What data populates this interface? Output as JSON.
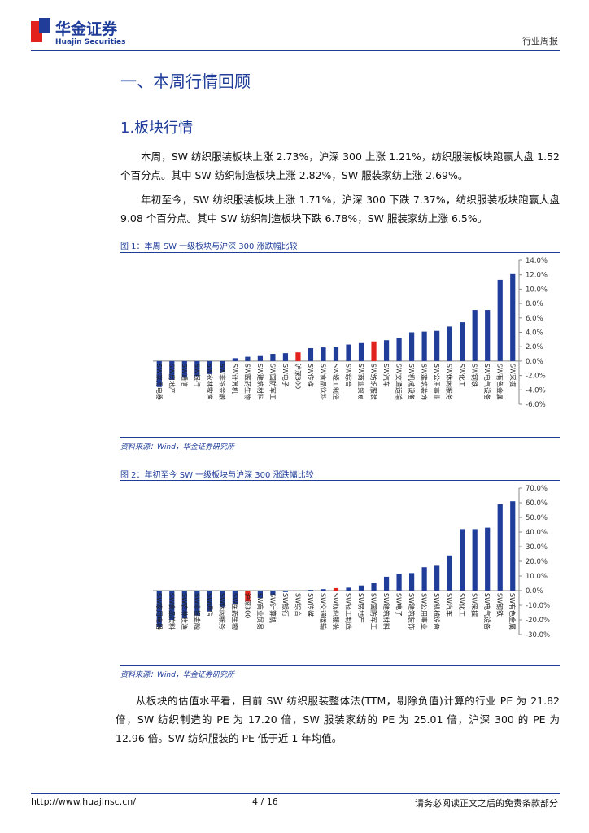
{
  "header": {
    "logo_cn": "华金证券",
    "logo_en": "Huajin Securities",
    "report_type": "行业周报"
  },
  "headings": [
    "一、本周行情回顾",
    "1.板块行情"
  ],
  "paragraphs": [
    "本周，SW 纺织服装板块上涨 2.73%，沪深 300 上涨 1.21%，纺织服装板块跑赢大盘 1.52 个百分点。其中 SW 纺织制造板块上涨 2.82%，SW 服装家纺上涨 2.69%。",
    "年初至今，SW 纺织服装板块上涨 1.71%，沪深 300 下跌 7.37%，纺织服装板块跑赢大盘 9.08 个百分点。其中 SW 纺织制造板块下跌 6.78%，SW 服装家纺上涨 6.5%。",
    "从板块的估值水平看，目前 SW 纺织服装整体法(TTM，剔除负值)计算的行业 PE 为 21.82 倍，SW 纺织制造的 PE 为 17.20 倍，SW 服装家纺的 PE 为 25.01 倍，沪深 300 的 PE 为 12.96 倍。SW 纺织服装的 PE 低于近 1 年均值。"
  ],
  "chart_data": [
    {
      "type": "bar",
      "title": "图 1：本周 SW 一级板块与沪深 300 涨跌幅比较",
      "source": "资料来源：Wind，华金证券研究所",
      "categories": [
        "SW家用电器",
        "SW房地产",
        "SW通信",
        "SW银行",
        "SW农林牧渔",
        "SW非银金融",
        "SW计算机",
        "SW医药生物",
        "SW建筑材料",
        "SW国防军工",
        "SW电子",
        "沪深300",
        "SW传媒",
        "SW食品饮料",
        "SW轻工制造",
        "SW综合",
        "SW商业贸易",
        "SW纺织服装",
        "SW汽车",
        "SW交通运输",
        "SW机械设备",
        "SW建筑装饰",
        "SW公用事业",
        "SW休闲服务",
        "SW化工",
        "SW钢铁",
        "SW电气设备",
        "SW有色金属",
        "SW采掘"
      ],
      "values": [
        -3.6,
        -2.6,
        -2.3,
        -2.1,
        -1.8,
        -1.5,
        0.4,
        0.6,
        0.7,
        1.0,
        1.1,
        1.21,
        1.8,
        1.9,
        2.0,
        2.3,
        2.5,
        2.73,
        2.9,
        3.2,
        4.0,
        4.1,
        4.2,
        4.8,
        5.4,
        7.1,
        7.1,
        11.3,
        12.1
      ],
      "colors": [
        "#1f3d99",
        "#1f3d99",
        "#1f3d99",
        "#1f3d99",
        "#1f3d99",
        "#1f3d99",
        "#1f3d99",
        "#1f3d99",
        "#1f3d99",
        "#1f3d99",
        "#1f3d99",
        "#e3211c",
        "#1f3d99",
        "#1f3d99",
        "#1f3d99",
        "#1f3d99",
        "#1f3d99",
        "#e3211c",
        "#1f3d99",
        "#1f3d99",
        "#1f3d99",
        "#1f3d99",
        "#1f3d99",
        "#1f3d99",
        "#1f3d99",
        "#1f3d99",
        "#1f3d99",
        "#1f3d99",
        "#1f3d99"
      ],
      "ylim": [
        -6,
        14
      ],
      "yticks": [
        {
          "value": -6,
          "label": "-6.0%"
        },
        {
          "value": -4,
          "label": "-4.0%"
        },
        {
          "value": -2,
          "label": "-2.0%"
        },
        {
          "value": 0,
          "label": "0.0%"
        },
        {
          "value": 2,
          "label": "2.0%"
        },
        {
          "value": 4,
          "label": "4.0%"
        },
        {
          "value": 6,
          "label": "6.0%"
        },
        {
          "value": 8,
          "label": "8.0%"
        },
        {
          "value": 10,
          "label": "10.0%"
        },
        {
          "value": 12,
          "label": "12.0%"
        },
        {
          "value": 14,
          "label": "14.0%"
        }
      ]
    },
    {
      "type": "bar",
      "title": "图 2：年初至今 SW 一级板块与沪深 300 涨跌幅比较",
      "source": "资料来源：Wind，华金证券研究所",
      "categories": [
        "SW家用电器",
        "SW食品饮料",
        "SW农林牧渔",
        "SW非银金融",
        "SW通信",
        "SW休闲服务",
        "SW医药生物",
        "沪深300",
        "SW商业贸易",
        "SW计算机",
        "SW银行",
        "SW综合",
        "SW传媒",
        "SW交通运输",
        "SW纺织服装",
        "SW轻工制造",
        "SW房地产",
        "SW国防军工",
        "SW建筑材料",
        "SW电子",
        "SW建筑装饰",
        "SW公用事业",
        "SW机械设备",
        "SW汽车",
        "SW化工",
        "SW采掘",
        "SW电气设备",
        "SW钢铁",
        "SW有色金属"
      ],
      "values": [
        -25,
        -20,
        -19,
        -17,
        -14,
        -11,
        -9,
        -7.37,
        -5,
        -3,
        -1,
        -0.5,
        0.5,
        1.0,
        1.71,
        2.0,
        3.5,
        5.0,
        9.5,
        11.5,
        12.0,
        16.0,
        17.0,
        24.0,
        42.0,
        42.0,
        43.0,
        59.0,
        61.0
      ],
      "colors": [
        "#1f3d99",
        "#1f3d99",
        "#1f3d99",
        "#1f3d99",
        "#1f3d99",
        "#1f3d99",
        "#1f3d99",
        "#e3211c",
        "#1f3d99",
        "#1f3d99",
        "#1f3d99",
        "#1f3d99",
        "#1f3d99",
        "#1f3d99",
        "#e3211c",
        "#1f3d99",
        "#1f3d99",
        "#1f3d99",
        "#1f3d99",
        "#1f3d99",
        "#1f3d99",
        "#1f3d99",
        "#1f3d99",
        "#1f3d99",
        "#1f3d99",
        "#1f3d99",
        "#1f3d99",
        "#1f3d99",
        "#1f3d99"
      ],
      "ylim": [
        -30,
        70
      ],
      "yticks": [
        {
          "value": -30,
          "label": "-30.0%"
        },
        {
          "value": -20,
          "label": "-20.0%"
        },
        {
          "value": -10,
          "label": "-10.0%"
        },
        {
          "value": 0,
          "label": "0.0%"
        },
        {
          "value": 10,
          "label": "10.0%"
        },
        {
          "value": 20,
          "label": "20.0%"
        },
        {
          "value": 30,
          "label": "30.0%"
        },
        {
          "value": 40,
          "label": "40.0%"
        },
        {
          "value": 50,
          "label": "50.0%"
        },
        {
          "value": 60,
          "label": "60.0%"
        },
        {
          "value": 70,
          "label": "70.0%"
        }
      ]
    }
  ],
  "footer": {
    "url": "http://www.huajinsc.cn/",
    "page": "4 / 16",
    "disclaimer": "请务必阅读正文之后的免责条款部分"
  }
}
